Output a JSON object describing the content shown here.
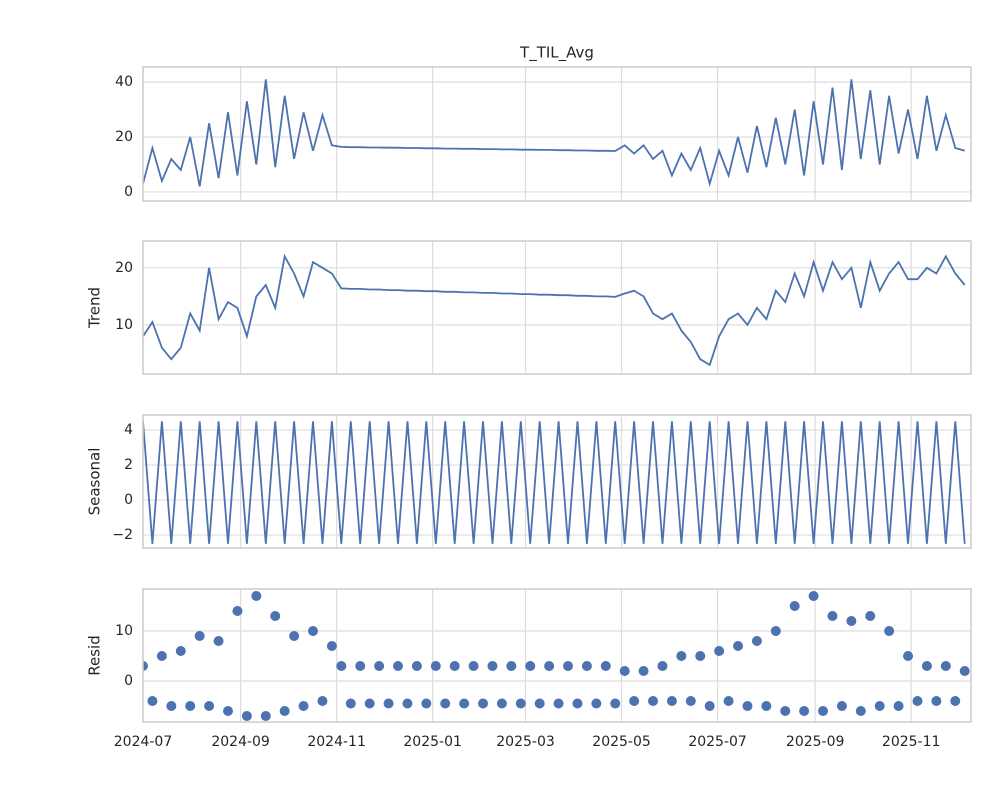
{
  "chart_data": {
    "type": "decomposition",
    "x": [
      "2024-07-01",
      "2024-07-07",
      "2024-07-13",
      "2024-07-19",
      "2024-07-25",
      "2024-07-31",
      "2024-08-06",
      "2024-08-12",
      "2024-08-18",
      "2024-08-24",
      "2024-08-30",
      "2024-09-05",
      "2024-09-11",
      "2024-09-17",
      "2024-09-23",
      "2024-09-29",
      "2024-10-05",
      "2024-10-11",
      "2024-10-17",
      "2024-10-23",
      "2024-10-29",
      "2024-11-04",
      "2024-11-10",
      "2024-11-16",
      "2024-11-22",
      "2024-11-28",
      "2024-12-04",
      "2024-12-10",
      "2024-12-16",
      "2024-12-22",
      "2024-12-28",
      "2025-01-03",
      "2025-01-09",
      "2025-01-15",
      "2025-01-21",
      "2025-01-27",
      "2025-02-02",
      "2025-02-08",
      "2025-02-14",
      "2025-02-20",
      "2025-02-26",
      "2025-03-04",
      "2025-03-10",
      "2025-03-16",
      "2025-03-22",
      "2025-03-28",
      "2025-04-03",
      "2025-04-09",
      "2025-04-15",
      "2025-04-21",
      "2025-04-27",
      "2025-05-03",
      "2025-05-09",
      "2025-05-15",
      "2025-05-21",
      "2025-05-27",
      "2025-06-02",
      "2025-06-08",
      "2025-06-14",
      "2025-06-20",
      "2025-06-26",
      "2025-07-02",
      "2025-07-08",
      "2025-07-14",
      "2025-07-20",
      "2025-07-26",
      "2025-08-01",
      "2025-08-07",
      "2025-08-13",
      "2025-08-19",
      "2025-08-25",
      "2025-08-31",
      "2025-09-06",
      "2025-09-12",
      "2025-09-18",
      "2025-09-24",
      "2025-09-30",
      "2025-10-06",
      "2025-10-12",
      "2025-10-18",
      "2025-10-24",
      "2025-10-30",
      "2025-11-05",
      "2025-11-11",
      "2025-11-17",
      "2025-11-23",
      "2025-11-29",
      "2025-12-05"
    ],
    "xlim": [
      "2024-07-01",
      "2025-12-09"
    ],
    "xticks": [
      {
        "value": "2024-07-01",
        "label": "2024-07"
      },
      {
        "value": "2024-09-01",
        "label": "2024-09"
      },
      {
        "value": "2024-11-01",
        "label": "2024-11"
      },
      {
        "value": "2025-01-01",
        "label": "2025-01"
      },
      {
        "value": "2025-03-01",
        "label": "2025-03"
      },
      {
        "value": "2025-05-01",
        "label": "2025-05"
      },
      {
        "value": "2025-07-01",
        "label": "2025-07"
      },
      {
        "value": "2025-09-01",
        "label": "2025-09"
      },
      {
        "value": "2025-11-01",
        "label": "2025-11"
      }
    ],
    "color": "#4c72b0",
    "grid": true,
    "panels": [
      {
        "type": "line",
        "title": "T_TIL_Avg",
        "ylim": [
          -3.3,
          45.5
        ],
        "yticks": [
          0,
          20,
          40
        ],
        "values": [
          3,
          16,
          4,
          12,
          8,
          20,
          2,
          25,
          5,
          29,
          6,
          33,
          10,
          41,
          9,
          35,
          12,
          29,
          15,
          28,
          17,
          16.4,
          16.3,
          16.3,
          16.2,
          16.2,
          16.1,
          16.1,
          16.0,
          16.0,
          15.9,
          15.9,
          15.8,
          15.8,
          15.7,
          15.7,
          15.6,
          15.6,
          15.5,
          15.5,
          15.4,
          15.4,
          15.3,
          15.3,
          15.2,
          15.2,
          15.1,
          15.1,
          15.0,
          15.0,
          14.9,
          17,
          14,
          17,
          12,
          15,
          6,
          14,
          8,
          16,
          3,
          15,
          6,
          20,
          7,
          24,
          9,
          27,
          10,
          30,
          6,
          33,
          10,
          38,
          8,
          41,
          12,
          37,
          10,
          35,
          14,
          30,
          12,
          35,
          15,
          28,
          16,
          15
        ]
      },
      {
        "type": "line",
        "ylabel": "Trend",
        "ylim": [
          1.4,
          24.7
        ],
        "yticks": [
          10,
          20
        ],
        "values": [
          8,
          10.5,
          6,
          4,
          6,
          12,
          9,
          20,
          11,
          14,
          13,
          8,
          15,
          17,
          13,
          22,
          19,
          15,
          21,
          20,
          19,
          16.4,
          16.3,
          16.3,
          16.2,
          16.2,
          16.1,
          16.1,
          16.0,
          16.0,
          15.9,
          15.9,
          15.8,
          15.8,
          15.7,
          15.7,
          15.6,
          15.6,
          15.5,
          15.5,
          15.4,
          15.4,
          15.3,
          15.3,
          15.2,
          15.2,
          15.1,
          15.1,
          15.0,
          15.0,
          14.9,
          15.5,
          16,
          15,
          12,
          11,
          12,
          9,
          7,
          4,
          3,
          8,
          11,
          12,
          10,
          13,
          11,
          16,
          14,
          19,
          15,
          21,
          16,
          21,
          18,
          20,
          13,
          21,
          16,
          19,
          21,
          18,
          18,
          20,
          19,
          22,
          19,
          17
        ]
      },
      {
        "type": "line",
        "ylabel": "Seasonal",
        "ylim": [
          -2.74,
          4.86
        ],
        "yticks": [
          {
            "value": -2,
            "label": "−2"
          },
          0,
          2,
          4
        ],
        "values": [
          4.5,
          -2.5,
          4.5,
          -2.5,
          4.5,
          -2.5,
          4.5,
          -2.5,
          4.5,
          -2.5,
          4.5,
          -2.5,
          4.5,
          -2.5,
          4.5,
          -2.5,
          4.5,
          -2.5,
          4.5,
          -2.5,
          4.5,
          -2.5,
          4.5,
          -2.5,
          4.5,
          -2.5,
          4.5,
          -2.5,
          4.5,
          -2.5,
          4.5,
          -2.5,
          4.5,
          -2.5,
          4.5,
          -2.5,
          4.5,
          -2.5,
          4.5,
          -2.5,
          4.5,
          -2.5,
          4.5,
          -2.5,
          4.5,
          -2.5,
          4.5,
          -2.5,
          4.5,
          -2.5,
          4.5,
          -2.5,
          4.5,
          -2.5,
          4.5,
          -2.5,
          4.5,
          -2.5,
          4.5,
          -2.5,
          4.5,
          -2.5,
          4.5,
          -2.5,
          4.5,
          -2.5,
          4.5,
          -2.5,
          4.5,
          -2.5,
          4.5,
          -2.5,
          4.5,
          -2.5,
          4.5,
          -2.5,
          4.5,
          -2.5,
          4.5,
          -2.5,
          4.5,
          -2.5,
          4.5,
          -2.5,
          4.5,
          -2.5,
          4.5,
          -2.5
        ]
      },
      {
        "type": "scatter",
        "ylabel": "Resid",
        "ylim": [
          -8.2,
          18.4
        ],
        "yticks": [
          0,
          10
        ],
        "values": [
          3,
          -4,
          5,
          -5,
          6,
          -5,
          9,
          -5,
          8,
          -6,
          14,
          -7,
          17,
          -7,
          13,
          -6,
          9,
          -5,
          10,
          -4,
          7,
          3,
          -4.5,
          3,
          -4.5,
          3,
          -4.5,
          3,
          -4.5,
          3,
          -4.5,
          3,
          -4.5,
          3,
          -4.5,
          3,
          -4.5,
          3,
          -4.5,
          3,
          -4.5,
          3,
          -4.5,
          3,
          -4.5,
          3,
          -4.5,
          3,
          -4.5,
          3,
          -4.5,
          2,
          -4,
          2,
          -4,
          3,
          -4,
          5,
          -4,
          5,
          -5,
          6,
          -4,
          7,
          -5,
          8,
          -5,
          10,
          -6,
          15,
          -6,
          17,
          -6,
          13,
          -5,
          12,
          -6,
          13,
          -5,
          10,
          -5,
          5,
          -4,
          3,
          -4,
          3,
          -4,
          2
        ]
      }
    ]
  }
}
